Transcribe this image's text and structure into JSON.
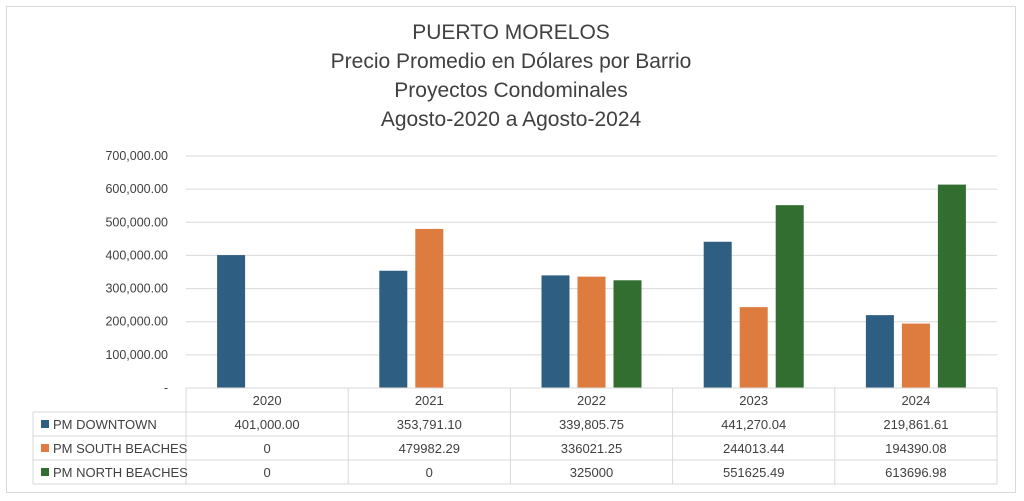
{
  "titles": [
    "PUERTO MORELOS",
    "Precio Promedio en Dólares por Barrio",
    "Proyectos Condominales",
    "Agosto-2020 a Agosto-2024"
  ],
  "chart_data": {
    "type": "bar",
    "categories": [
      "2020",
      "2021",
      "2022",
      "2023",
      "2024"
    ],
    "ylim": [
      0,
      700000
    ],
    "yticks": [
      0,
      100000,
      200000,
      300000,
      400000,
      500000,
      600000,
      700000
    ],
    "ytick_labels": [
      "-",
      "100,000.00",
      "200,000.00",
      "300,000.00",
      "400,000.00",
      "500,000.00",
      "600,000.00",
      "700,000.00"
    ],
    "grid": true,
    "legend": "data-table",
    "series": [
      {
        "name": "PM DOWNTOWN",
        "color": "#2e5f83",
        "values": [
          401000.0,
          353791.1,
          339805.75,
          441270.04,
          219861.61
        ],
        "labels": [
          "401,000.00",
          "353,791.10",
          "339,805.75",
          "441,270.04",
          "219,861.61"
        ]
      },
      {
        "name": "PM SOUTH BEACHES",
        "color": "#de7b3f",
        "values": [
          0,
          479982.29,
          336021.25,
          244013.44,
          194390.08
        ],
        "labels": [
          "0",
          "479982.29",
          "336021.25",
          "244013.44",
          "194390.08"
        ]
      },
      {
        "name": "PM NORTH BEACHES",
        "color": "#326e2f",
        "values": [
          0,
          0,
          325000,
          551625.49,
          613696.98
        ],
        "labels": [
          "0",
          "0",
          "325000",
          "551625.49",
          "613696.98"
        ]
      }
    ]
  }
}
